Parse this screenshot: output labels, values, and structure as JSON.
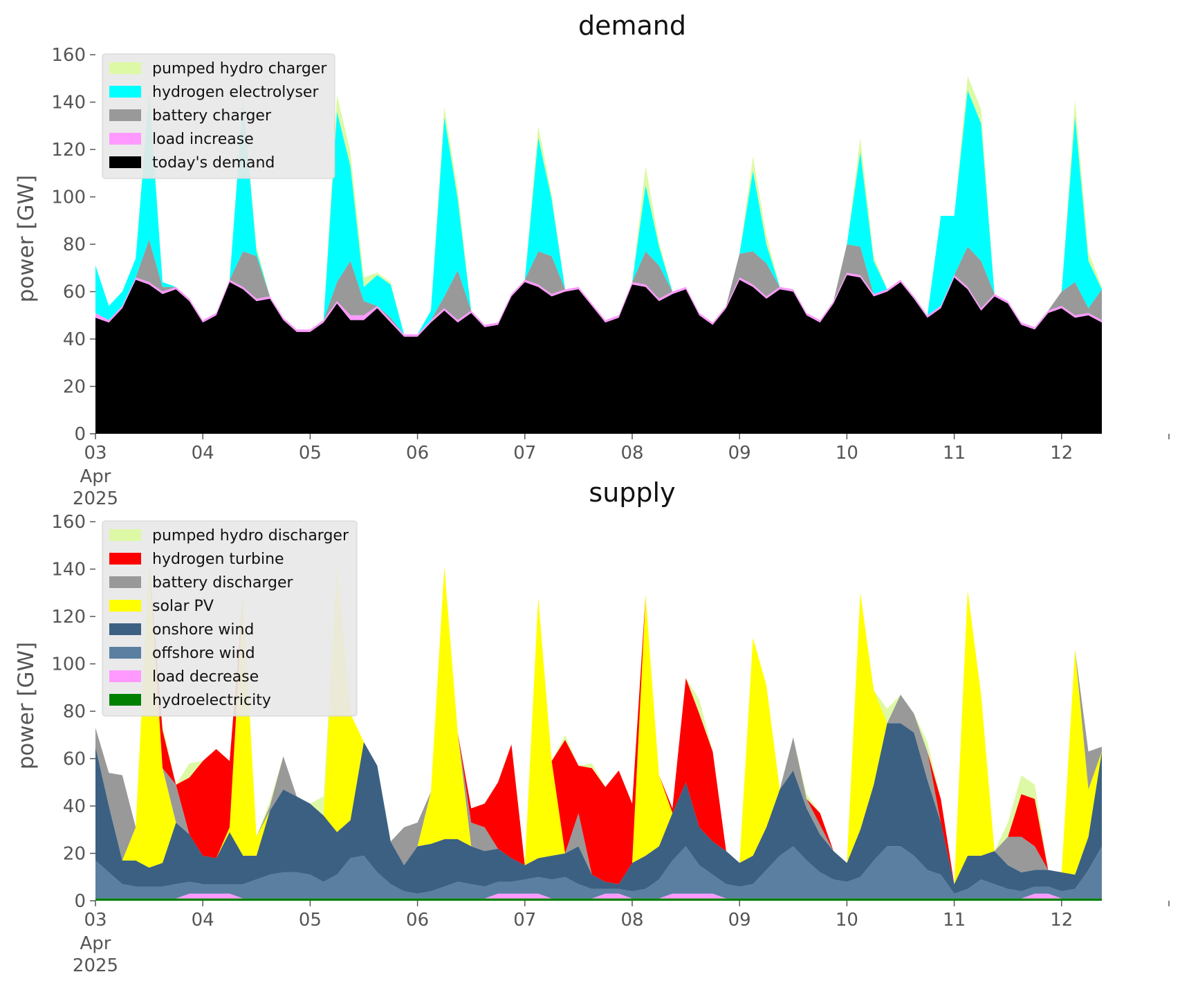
{
  "chart_data": [
    {
      "type": "area",
      "title": "demand",
      "ylabel": "power [GW]",
      "ylim": [
        0,
        165
      ],
      "yticks": [
        0,
        20,
        40,
        60,
        80,
        100,
        120,
        140,
        160
      ],
      "x_start": "2025-04-03",
      "x_end": "2025-04-13",
      "x_step_hours": 3,
      "x_ticks": [
        {
          "date": "2025-04-03",
          "label": "03",
          "sub1": "Apr",
          "sub2": "2025"
        },
        {
          "date": "2025-04-04",
          "label": "04"
        },
        {
          "date": "2025-04-05",
          "label": "05"
        },
        {
          "date": "2025-04-06",
          "label": "06"
        },
        {
          "date": "2025-04-07",
          "label": "07"
        },
        {
          "date": "2025-04-08",
          "label": "08"
        },
        {
          "date": "2025-04-09",
          "label": "09"
        },
        {
          "date": "2025-04-10",
          "label": "10"
        },
        {
          "date": "2025-04-11",
          "label": "11"
        },
        {
          "date": "2025-04-12",
          "label": "12"
        }
      ],
      "legend_position": "top-left",
      "legend_order": [
        "pumped hydro charger",
        "hydrogen electrolyser",
        "battery charger",
        "load increase",
        "today's demand"
      ],
      "series": [
        {
          "name": "today's demand",
          "color": "#000000",
          "values": [
            49,
            47,
            53,
            65,
            63,
            59,
            61,
            56,
            47,
            50,
            64,
            61,
            56,
            57,
            48,
            43,
            43,
            47,
            55,
            48,
            48,
            53,
            47,
            41,
            41,
            47,
            52,
            47,
            51,
            45,
            46,
            58,
            64,
            62,
            58,
            60,
            61,
            54,
            47,
            49,
            63,
            62,
            56,
            59,
            61,
            50,
            46,
            53,
            65,
            62,
            57,
            61,
            60,
            50,
            47,
            55,
            67,
            66,
            58,
            60,
            64,
            57,
            49,
            53,
            66,
            61,
            52,
            58,
            55,
            46,
            44,
            51,
            53,
            49,
            50,
            47
          ]
        },
        {
          "name": "load increase",
          "color": "#ff99ff",
          "values": [
            2,
            1,
            1,
            1,
            1,
            1,
            1,
            1,
            1,
            1,
            1,
            1,
            1,
            1,
            1,
            1,
            1,
            1,
            1,
            2,
            2,
            1,
            1,
            1,
            1,
            1,
            1,
            1,
            1,
            1,
            1,
            1,
            1,
            1,
            1,
            1,
            1,
            1,
            1,
            1,
            1,
            1,
            1,
            1,
            1,
            1,
            1,
            1,
            1,
            1,
            1,
            1,
            1,
            1,
            1,
            1,
            1,
            1,
            1,
            1,
            1,
            1,
            1,
            1,
            1,
            1,
            1,
            1,
            1,
            1,
            1,
            1,
            1,
            1,
            1,
            1
          ]
        },
        {
          "name": "battery charger",
          "color": "#999999",
          "values": [
            0,
            0,
            0,
            0,
            18,
            2,
            0,
            0,
            0,
            0,
            0,
            15,
            18,
            0,
            0,
            0,
            0,
            0,
            8,
            23,
            6,
            0,
            1,
            0,
            0,
            0,
            5,
            21,
            0,
            0,
            0,
            0,
            0,
            14,
            16,
            0,
            0,
            0,
            0,
            0,
            0,
            14,
            14,
            0,
            0,
            0,
            0,
            0,
            10,
            14,
            14,
            0,
            0,
            0,
            0,
            0,
            12,
            12,
            0,
            0,
            0,
            0,
            0,
            0,
            0,
            17,
            20,
            0,
            0,
            0,
            0,
            0,
            6,
            14,
            2,
            13
          ]
        },
        {
          "name": "hydrogen electrolyser",
          "color": "#00ffff",
          "values": [
            20,
            6,
            6,
            8,
            62,
            2,
            0,
            0,
            0,
            0,
            0,
            64,
            2,
            0,
            0,
            0,
            0,
            0,
            72,
            40,
            6,
            13,
            14,
            0,
            0,
            4,
            76,
            30,
            0,
            0,
            0,
            0,
            0,
            48,
            24,
            0,
            0,
            0,
            0,
            0,
            0,
            28,
            8,
            0,
            0,
            0,
            0,
            0,
            0,
            34,
            8,
            0,
            0,
            0,
            0,
            0,
            0,
            40,
            14,
            0,
            0,
            0,
            0,
            38,
            25,
            66,
            58,
            0,
            0,
            0,
            0,
            0,
            0,
            70,
            20,
            0
          ]
        },
        {
          "name": "pumped hydro charger",
          "color": "#ddf9a5",
          "values": [
            0,
            0,
            0,
            0,
            4,
            0,
            0,
            0,
            0,
            0,
            0,
            2,
            2,
            0,
            0,
            0,
            0,
            0,
            7,
            6,
            4,
            1,
            1,
            0,
            0,
            0,
            4,
            4,
            0,
            0,
            0,
            0,
            0,
            5,
            2,
            0,
            0,
            0,
            0,
            0,
            0,
            8,
            2,
            0,
            0,
            0,
            0,
            0,
            0,
            6,
            4,
            0,
            0,
            0,
            0,
            0,
            0,
            6,
            2,
            0,
            0,
            0,
            0,
            0,
            0,
            6,
            6,
            0,
            0,
            0,
            0,
            0,
            0,
            7,
            4,
            1
          ]
        }
      ]
    },
    {
      "type": "area",
      "title": "supply",
      "ylabel": "power [GW]",
      "ylim": [
        0,
        165
      ],
      "yticks": [
        0,
        20,
        40,
        60,
        80,
        100,
        120,
        140,
        160
      ],
      "x_start": "2025-04-03",
      "x_end": "2025-04-13",
      "x_step_hours": 3,
      "x_ticks": [
        {
          "date": "2025-04-03",
          "label": "03",
          "sub1": "Apr",
          "sub2": "2025"
        },
        {
          "date": "2025-04-04",
          "label": "04"
        },
        {
          "date": "2025-04-05",
          "label": "05"
        },
        {
          "date": "2025-04-06",
          "label": "06"
        },
        {
          "date": "2025-04-07",
          "label": "07"
        },
        {
          "date": "2025-04-08",
          "label": "08"
        },
        {
          "date": "2025-04-09",
          "label": "09"
        },
        {
          "date": "2025-04-10",
          "label": "10"
        },
        {
          "date": "2025-04-11",
          "label": "11"
        },
        {
          "date": "2025-04-12",
          "label": "12"
        }
      ],
      "legend_position": "top-left",
      "legend_order": [
        "pumped hydro discharger",
        "hydrogen turbine",
        "battery discharger",
        "solar PV",
        "onshore wind",
        "offshore wind",
        "load decrease",
        "hydroelectricity"
      ],
      "series": [
        {
          "name": "hydroelectricity",
          "color": "#008000",
          "values": [
            1,
            1,
            1,
            1,
            1,
            1,
            1,
            1,
            1,
            1,
            1,
            1,
            1,
            1,
            1,
            1,
            1,
            1,
            1,
            1,
            1,
            1,
            1,
            1,
            1,
            1,
            1,
            1,
            1,
            1,
            1,
            1,
            1,
            1,
            1,
            1,
            1,
            1,
            1,
            1,
            1,
            1,
            1,
            1,
            1,
            1,
            1,
            1,
            1,
            1,
            1,
            1,
            1,
            1,
            1,
            1,
            1,
            1,
            1,
            1,
            1,
            1,
            1,
            1,
            1,
            1,
            1,
            1,
            1,
            1,
            1,
            1,
            1,
            1,
            1,
            1
          ]
        },
        {
          "name": "load decrease",
          "color": "#ff99ff",
          "values": [
            0,
            0,
            0,
            0,
            0,
            0,
            0,
            2,
            2,
            2,
            2,
            0,
            0,
            0,
            0,
            0,
            0,
            0,
            0,
            0,
            0,
            0,
            0,
            0,
            0,
            0,
            0,
            0,
            0,
            0,
            2,
            2,
            2,
            2,
            0,
            0,
            0,
            0,
            2,
            2,
            0,
            0,
            0,
            2,
            2,
            2,
            2,
            0,
            0,
            0,
            0,
            0,
            0,
            0,
            0,
            0,
            0,
            0,
            0,
            0,
            0,
            0,
            0,
            0,
            0,
            0,
            0,
            0,
            0,
            0,
            2,
            2,
            0,
            0,
            0,
            0
          ]
        },
        {
          "name": "offshore wind",
          "color": "#5b7fa0",
          "values": [
            16,
            11,
            6,
            5,
            5,
            5,
            6,
            5,
            4,
            4,
            4,
            6,
            8,
            10,
            11,
            11,
            10,
            7,
            10,
            17,
            18,
            11,
            6,
            3,
            2,
            3,
            5,
            7,
            6,
            5,
            5,
            5,
            6,
            7,
            8,
            9,
            6,
            4,
            2,
            2,
            3,
            4,
            8,
            14,
            20,
            12,
            8,
            6,
            5,
            6,
            12,
            18,
            22,
            16,
            11,
            8,
            7,
            9,
            16,
            22,
            22,
            18,
            12,
            10,
            2,
            4,
            8,
            6,
            4,
            3,
            3,
            3,
            3,
            4,
            12,
            22
          ]
        },
        {
          "name": "onshore wind",
          "color": "#3b6082",
          "values": [
            48,
            28,
            10,
            11,
            8,
            10,
            26,
            20,
            12,
            11,
            22,
            12,
            10,
            27,
            35,
            32,
            30,
            28,
            18,
            16,
            48,
            45,
            18,
            11,
            20,
            20,
            20,
            18,
            16,
            15,
            14,
            10,
            6,
            8,
            10,
            10,
            16,
            6,
            3,
            2,
            12,
            14,
            14,
            20,
            27,
            16,
            14,
            14,
            10,
            12,
            18,
            28,
            32,
            22,
            16,
            12,
            8,
            20,
            32,
            52,
            52,
            52,
            38,
            22,
            4,
            14,
            10,
            14,
            10,
            8,
            7,
            7,
            8,
            6,
            14,
            40
          ]
        },
        {
          "name": "solar PV",
          "color": "#ffff00",
          "values": [
            0,
            0,
            0,
            14,
            130,
            40,
            0,
            0,
            0,
            0,
            2,
            110,
            8,
            0,
            0,
            0,
            0,
            0,
            112,
            45,
            0,
            0,
            0,
            0,
            0,
            22,
            115,
            45,
            0,
            0,
            0,
            0,
            0,
            110,
            40,
            0,
            0,
            0,
            0,
            0,
            0,
            110,
            30,
            0,
            0,
            0,
            0,
            0,
            0,
            92,
            60,
            0,
            0,
            0,
            0,
            0,
            0,
            100,
            40,
            0,
            0,
            0,
            0,
            0,
            0,
            112,
            68,
            0,
            0,
            0,
            0,
            0,
            0,
            95,
            20,
            0
          ]
        },
        {
          "name": "battery discharger",
          "color": "#999999",
          "values": [
            8,
            14,
            36,
            0,
            0,
            0,
            16,
            0,
            0,
            0,
            0,
            0,
            0,
            2,
            14,
            0,
            0,
            0,
            0,
            0,
            0,
            0,
            0,
            16,
            10,
            0,
            0,
            0,
            10,
            10,
            0,
            0,
            0,
            0,
            0,
            0,
            14,
            0,
            0,
            0,
            0,
            0,
            0,
            0,
            0,
            0,
            0,
            0,
            0,
            0,
            0,
            0,
            14,
            4,
            4,
            0,
            0,
            0,
            0,
            0,
            12,
            8,
            12,
            0,
            0,
            0,
            0,
            0,
            12,
            15,
            10,
            0,
            0,
            0,
            16,
            2
          ]
        },
        {
          "name": "hydrogen turbine",
          "color": "#ff0000",
          "values": [
            0,
            0,
            0,
            0,
            0,
            16,
            0,
            24,
            40,
            46,
            28,
            0,
            0,
            0,
            0,
            0,
            0,
            0,
            0,
            0,
            0,
            0,
            0,
            0,
            0,
            0,
            0,
            0,
            6,
            10,
            28,
            48,
            0,
            0,
            0,
            48,
            20,
            45,
            40,
            48,
            25,
            0,
            0,
            2,
            44,
            48,
            38,
            0,
            0,
            0,
            0,
            0,
            0,
            0,
            5,
            0,
            0,
            0,
            0,
            0,
            0,
            0,
            0,
            10,
            0,
            0,
            0,
            0,
            0,
            18,
            20,
            0,
            0,
            0,
            0,
            0
          ]
        },
        {
          "name": "pumped hydro discharger",
          "color": "#ddf9a5",
          "values": [
            0,
            0,
            0,
            0,
            0,
            2,
            0,
            6,
            0,
            0,
            0,
            0,
            0,
            2,
            0,
            0,
            0,
            8,
            0,
            0,
            0,
            0,
            0,
            0,
            0,
            0,
            0,
            0,
            0,
            0,
            0,
            0,
            0,
            0,
            0,
            2,
            0,
            2,
            0,
            0,
            0,
            0,
            0,
            0,
            0,
            6,
            0,
            0,
            0,
            0,
            0,
            0,
            0,
            2,
            0,
            0,
            0,
            0,
            0,
            6,
            0,
            0,
            4,
            0,
            0,
            0,
            0,
            0,
            6,
            8,
            6,
            0,
            0,
            0,
            0,
            0
          ]
        }
      ]
    }
  ]
}
